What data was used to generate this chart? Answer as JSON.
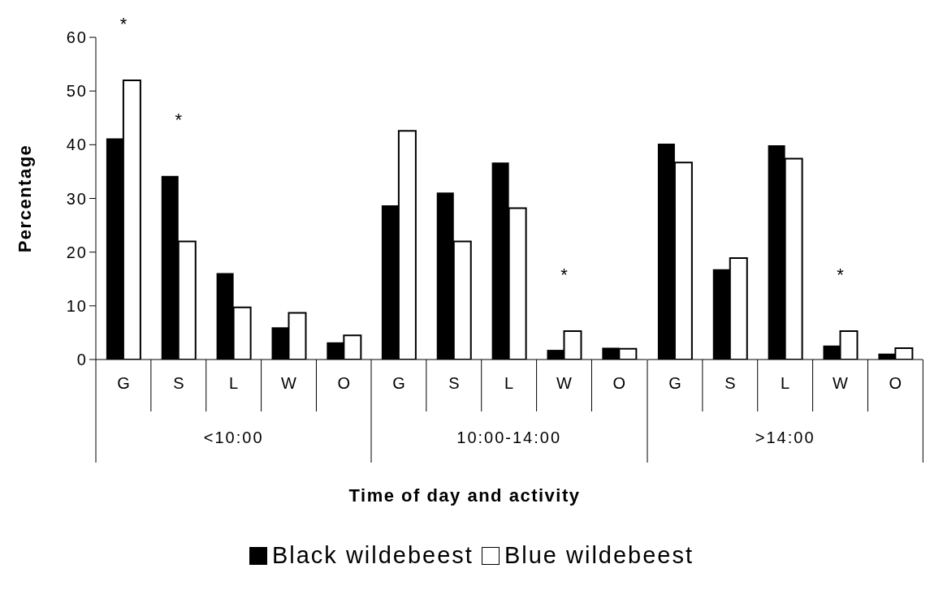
{
  "chart_data": [
    {
      "type": "bar",
      "ylabel": "Percentage",
      "xlabel": "<10:00",
      "categories": [
        "G",
        "S",
        "L",
        "W",
        "O"
      ],
      "series": [
        {
          "name": "Black wildebeest",
          "color": "#000000",
          "values": [
            41.2,
            34.2,
            16.1,
            6.0,
            3.2
          ]
        },
        {
          "name": "Blue wildebeest",
          "color": "#ffffff",
          "values": [
            52.0,
            22.0,
            9.7,
            8.7,
            4.5
          ]
        }
      ],
      "ylim": [
        0,
        60
      ],
      "yticks": [
        0,
        10,
        20,
        30,
        40,
        50,
        60
      ],
      "legend": "bottom",
      "annotations": [
        {
          "text": "*",
          "x": "G",
          "y": 52.0
        },
        {
          "text": "*",
          "x": "S",
          "y": 34.2
        }
      ]
    },
    {
      "type": "bar",
      "xlabel": "10:00-14:00",
      "categories": [
        "G",
        "S",
        "L",
        "W",
        "O"
      ],
      "series": [
        {
          "color": "#000000",
          "values": [
            28.7,
            31.1,
            36.7,
            1.8,
            2.2
          ]
        },
        {
          "color": "#ffffff",
          "values": [
            42.6,
            22.0,
            28.2,
            5.3,
            2.0
          ]
        }
      ],
      "ylim": [
        0,
        60
      ],
      "yticks": [
        0,
        10,
        20,
        30,
        40,
        50,
        60
      ],
      "tick_labels": "x",
      "annotations": [
        {
          "text": "*",
          "x": "W",
          "y": 5.3
        },
        "Time of day and activity"
      ]
    },
    {
      "type": "bar",
      "xlabel": ">14:00",
      "categories": [
        "G",
        "S",
        "L",
        "W",
        "O"
      ],
      "series": [
        {
          "color": "#000000",
          "values": [
            40.2,
            16.8,
            39.9,
            2.6,
            1.1
          ]
        },
        {
          "color": "#ffffff",
          "values": [
            36.7,
            18.9,
            37.4,
            5.3,
            2.1
          ]
        }
      ],
      "ylim": [
        0,
        60
      ],
      "yticks": [
        0,
        10,
        20,
        30,
        40,
        50,
        60
      ],
      "tick_labels": "x",
      "annotations": [
        {
          "text": "*",
          "x": "W",
          "y": 5.3
        }
      ]
    }
  ]
}
